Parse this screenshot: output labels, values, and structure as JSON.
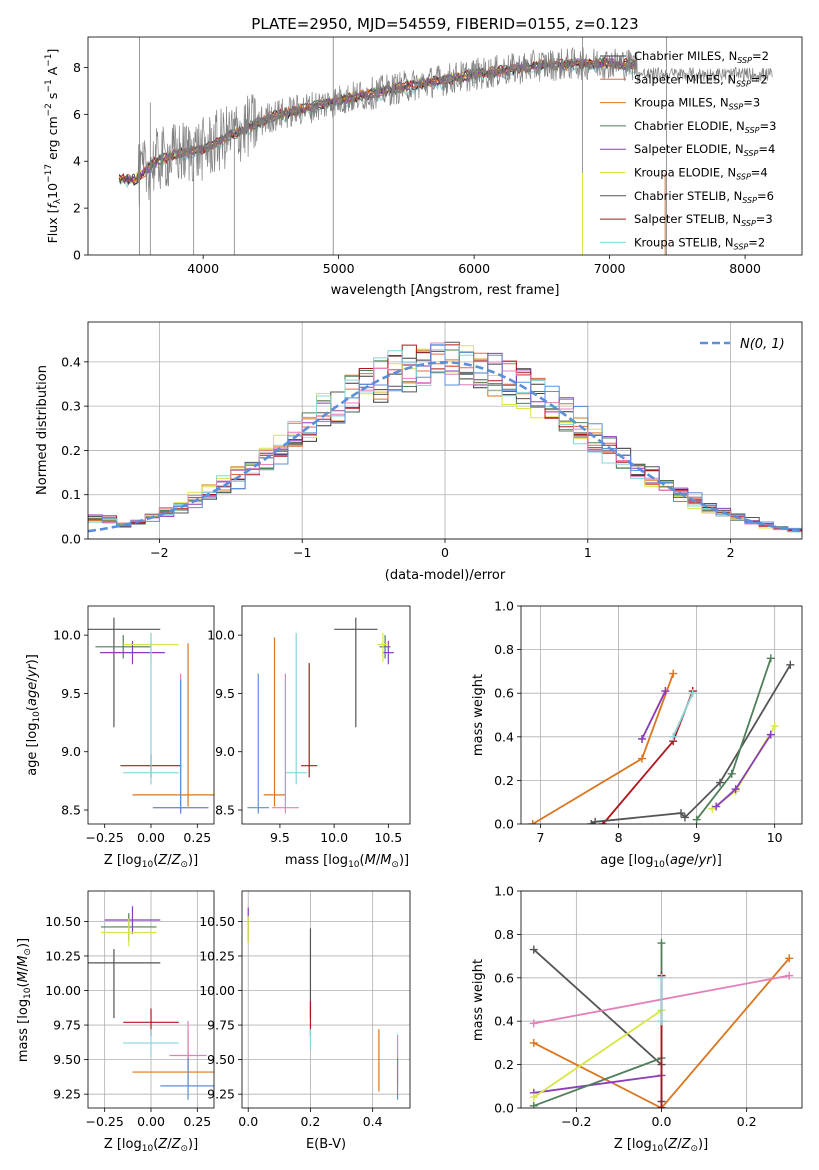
{
  "colors": {
    "chab_miles": "#3a3a3a",
    "salp_miles": "#e8684a",
    "krou_miles": "#d9761f",
    "chab_elodie": "#4e7f5a",
    "salp_elodie": "#8a3fb8",
    "krou_elodie": "#d9e64a",
    "chab_stelib": "#555555",
    "salp_stelib": "#b0151b",
    "krou_stelib": "#88d4d8",
    "observed": "#808080",
    "normal": "#5b8fd8",
    "pink": "#e47fb8",
    "blue": "#5b8fd8"
  },
  "chart_data": [
    {
      "type": "line",
      "title": "PLATE=2950, MJD=54559, FIBERID=0155, z=0.123",
      "xlabel": "wavelength [Angstrom, rest frame]",
      "ylabel": "Flux [fλ10⁻¹⁷ erg cm⁻² s⁻¹ A⁻¹]",
      "xlim": [
        3150,
        8420
      ],
      "ylim": [
        0,
        9.3
      ],
      "xticks": [
        "4000",
        "5000",
        "6000",
        "7000",
        "8000"
      ],
      "yticks": [
        "0",
        "2",
        "4",
        "6",
        "8"
      ],
      "legend_position": "top-right",
      "legend": [
        {
          "label": "Chabrier MILES, N_SSP=2",
          "color_key": "chab_miles"
        },
        {
          "label": "Salpeter MILES, N_SSP=2",
          "color_key": "salp_miles"
        },
        {
          "label": "Kroupa MILES, N_SSP=3",
          "color_key": "krou_miles"
        },
        {
          "label": "Chabrier ELODIE, N_SSP=3",
          "color_key": "chab_elodie"
        },
        {
          "label": "Salpeter ELODIE, N_SSP=4",
          "color_key": "salp_elodie"
        },
        {
          "label": "Kroupa ELODIE, N_SSP=4",
          "color_key": "krou_elodie"
        },
        {
          "label": "Chabrier STELIB, N_SSP=6",
          "color_key": "chab_stelib"
        },
        {
          "label": "Salpeter STELIB, N_SSP=3",
          "color_key": "salp_stelib"
        },
        {
          "label": "Kroupa STELIB, N_SSP=2",
          "color_key": "krou_stelib"
        }
      ],
      "continuum": [
        [
          3380,
          3.3
        ],
        [
          3500,
          3.2
        ],
        [
          3650,
          4.0
        ],
        [
          3800,
          4.3
        ],
        [
          4000,
          4.5
        ],
        [
          4200,
          5.1
        ],
        [
          4500,
          5.9
        ],
        [
          5000,
          6.6
        ],
        [
          5500,
          7.2
        ],
        [
          6000,
          7.7
        ],
        [
          6500,
          8.1
        ],
        [
          7000,
          8.2
        ],
        [
          7200,
          8.1
        ]
      ]
    },
    {
      "type": "bar",
      "xlabel": "(data-model)/error",
      "ylabel": "Normed distribution",
      "xlim": [
        -2.5,
        2.5
      ],
      "ylim": [
        0,
        0.49
      ],
      "xticks": [
        "−2",
        "−1",
        "0",
        "1",
        "2"
      ],
      "yticks": [
        "0.0",
        "0.1",
        "0.2",
        "0.3",
        "0.4"
      ],
      "legend_position": "top-right",
      "legend": [
        {
          "label": "N(0, 1)",
          "color_key": "normal"
        }
      ],
      "histogram_peak": 0.47
    },
    {
      "type": "scatter",
      "xlabel": "Z [log10(Z/Z⊙)]",
      "ylabel": "age [log10(age/yr)]",
      "xlim": [
        -0.34,
        0.34
      ],
      "ylim": [
        8.38,
        10.25
      ],
      "xticks": [
        "−0.25",
        "0.00",
        "0.25"
      ],
      "yticks": [
        "8.5",
        "9.0",
        "9.5",
        "10.0"
      ],
      "points": [
        {
          "x": -0.2,
          "y": 10.05,
          "xerr": [
            0.5
          ],
          "yerr": [
            0.84,
            0.1
          ],
          "color_key": "chab_stelib"
        },
        {
          "x": -0.15,
          "y": 9.9,
          "xerr": [
            0.3
          ],
          "yerr": [
            0.1,
            0.1
          ],
          "color_key": "chab_elodie"
        },
        {
          "x": -0.1,
          "y": 9.85,
          "xerr": [
            0.35
          ],
          "yerr": [
            0.1,
            0.1
          ],
          "color_key": "salp_elodie"
        },
        {
          "x": 0.0,
          "y": 9.92,
          "xerr": [
            0.3
          ],
          "yerr": [
            0.15,
            0.1
          ],
          "color_key": "krou_elodie"
        },
        {
          "x": 0.0,
          "y": 8.88,
          "xerr": [
            0.33
          ],
          "yerr": [
            0.1,
            0.1
          ],
          "color_key": "salp_stelib"
        },
        {
          "x": 0.0,
          "y": 8.82,
          "xerr": [
            0.3
          ],
          "yerr": [
            0.1,
            1.2
          ],
          "color_key": "krou_stelib"
        },
        {
          "x": 0.2,
          "y": 8.63,
          "xerr": [
            0.6
          ],
          "yerr": [
            0.1,
            1.3
          ],
          "color_key": "krou_miles"
        },
        {
          "x": 0.16,
          "y": 8.52,
          "xerr": [
            0.3
          ],
          "yerr": [
            0.05,
            1.15
          ],
          "color_key": "pink"
        },
        {
          "x": 0.16,
          "y": 8.52,
          "xerr": [
            0.3
          ],
          "yerr": [
            0.05,
            1.1
          ],
          "color_key": "blue"
        }
      ]
    },
    {
      "type": "scatter",
      "xlabel": "mass [log10(M/M⊙)]",
      "ylabel": "",
      "xlim": [
        9.15,
        10.7
      ],
      "ylim": [
        8.38,
        10.25
      ],
      "xticks": [
        "9.5",
        "10.0",
        "10.5"
      ],
      "yticks": [
        "8.5",
        "9.0",
        "9.5",
        "10.0"
      ],
      "points": [
        {
          "x": 10.2,
          "y": 10.05,
          "xerr": [
            0.4
          ],
          "yerr": [
            0.84,
            0.1
          ],
          "color_key": "chab_stelib"
        },
        {
          "x": 10.47,
          "y": 9.9,
          "xerr": [
            0.1
          ],
          "yerr": [
            0.1,
            0.1
          ],
          "color_key": "chab_elodie"
        },
        {
          "x": 10.5,
          "y": 9.85,
          "xerr": [
            0.1
          ],
          "yerr": [
            0.1,
            0.1
          ],
          "color_key": "salp_elodie"
        },
        {
          "x": 10.45,
          "y": 9.92,
          "xerr": [
            0.1
          ],
          "yerr": [
            0.15,
            0.1
          ],
          "color_key": "krou_elodie"
        },
        {
          "x": 9.77,
          "y": 8.88,
          "xerr": [
            0.15
          ],
          "yerr": [
            0.1,
            0.88
          ],
          "color_key": "salp_stelib"
        },
        {
          "x": 9.65,
          "y": 8.82,
          "xerr": [
            0.2
          ],
          "yerr": [
            0.1,
            1.2
          ],
          "color_key": "krou_stelib"
        },
        {
          "x": 9.45,
          "y": 8.63,
          "xerr": [
            0.2
          ],
          "yerr": [
            0.1,
            1.35
          ],
          "color_key": "krou_miles"
        },
        {
          "x": 9.55,
          "y": 8.52,
          "xerr": [
            0.25
          ],
          "yerr": [
            0.05,
            1.15
          ],
          "color_key": "pink"
        },
        {
          "x": 9.3,
          "y": 8.52,
          "xerr": [
            0.2
          ],
          "yerr": [
            0.05,
            1.15
          ],
          "color_key": "blue"
        }
      ]
    },
    {
      "type": "line",
      "xlabel": "age [log10(age/yr)]",
      "ylabel": "mass weight",
      "xlim": [
        6.75,
        10.35
      ],
      "ylim": [
        0.0,
        1.0
      ],
      "xticks": [
        "7",
        "8",
        "9",
        "10"
      ],
      "yticks": [
        "0.0",
        "0.2",
        "0.4",
        "0.6",
        "0.8",
        "1.0"
      ],
      "series": [
        {
          "color_key": "krou_miles",
          "x": [
            6.9,
            8.3,
            8.7
          ],
          "y": [
            0.0,
            0.3,
            0.69
          ]
        },
        {
          "color_key": "pink",
          "x": [
            8.3,
            8.6
          ],
          "y": [
            0.39,
            0.61
          ]
        },
        {
          "color_key": "salp_elodie",
          "x": [
            8.3,
            8.6
          ],
          "y": [
            0.39,
            0.61
          ]
        },
        {
          "color_key": "salp_stelib",
          "x": [
            7.8,
            8.7,
            8.95
          ],
          "y": [
            0.0,
            0.38,
            0.61
          ]
        },
        {
          "color_key": "krou_stelib",
          "x": [
            8.7,
            8.95
          ],
          "y": [
            0.4,
            0.6
          ]
        },
        {
          "color_key": "chab_stelib",
          "x": [
            7.65,
            7.7,
            8.8,
            8.85,
            9.3,
            10.2
          ],
          "y": [
            0.0,
            0.01,
            0.05,
            0.03,
            0.19,
            0.73
          ]
        },
        {
          "color_key": "chab_elodie",
          "x": [
            9.0,
            9.45,
            9.95
          ],
          "y": [
            0.02,
            0.23,
            0.76
          ]
        },
        {
          "color_key": "krou_elodie",
          "x": [
            9.2,
            9.5,
            10.0
          ],
          "y": [
            0.07,
            0.15,
            0.45
          ]
        },
        {
          "color_key": "salp_elodie",
          "x": [
            9.25,
            9.5,
            9.95
          ],
          "y": [
            0.08,
            0.16,
            0.41
          ]
        }
      ]
    },
    {
      "type": "scatter",
      "xlabel": "Z [log10(Z/Z⊙)]",
      "ylabel": "mass [log10(M/M⊙)]",
      "xlim": [
        -0.34,
        0.34
      ],
      "ylim": [
        9.15,
        10.72
      ],
      "xticks": [
        "−0.25",
        "0.00",
        "0.25"
      ],
      "yticks": [
        "9.25",
        "9.50",
        "9.75",
        "10.00",
        "10.25",
        "10.50"
      ],
      "points": [
        {
          "x": -0.2,
          "y": 10.2,
          "xerr": [
            0.5
          ],
          "yerr": [
            0.4,
            0.1
          ],
          "color_key": "chab_stelib"
        },
        {
          "x": -0.1,
          "y": 10.51,
          "xerr": [
            0.3
          ],
          "yerr": [
            0.1,
            0.1
          ],
          "color_key": "salp_elodie"
        },
        {
          "x": -0.12,
          "y": 10.46,
          "xerr": [
            0.3
          ],
          "yerr": [
            0.1,
            0.1
          ],
          "color_key": "chab_elodie"
        },
        {
          "x": -0.12,
          "y": 10.42,
          "xerr": [
            0.3
          ],
          "yerr": [
            0.1,
            0.1
          ],
          "color_key": "krou_elodie"
        },
        {
          "x": 0.0,
          "y": 9.77,
          "xerr": [
            0.3
          ],
          "yerr": [
            0.1,
            0.1
          ],
          "color_key": "salp_stelib"
        },
        {
          "x": 0.0,
          "y": 9.62,
          "xerr": [
            0.3
          ],
          "yerr": [
            0.1,
            0.1
          ],
          "color_key": "krou_stelib"
        },
        {
          "x": 0.2,
          "y": 9.41,
          "xerr": [
            0.6
          ],
          "yerr": [
            0.1,
            0.3
          ],
          "color_key": "krou_miles"
        },
        {
          "x": 0.2,
          "y": 9.53,
          "xerr": [
            0.2
          ],
          "yerr": [
            0.1,
            0.25
          ],
          "color_key": "pink"
        },
        {
          "x": 0.2,
          "y": 9.31,
          "xerr": [
            0.3
          ],
          "yerr": [
            0.1,
            0.2
          ],
          "color_key": "blue"
        }
      ]
    },
    {
      "type": "scatter",
      "xlabel": "E(B-V)",
      "ylabel": "",
      "xlim": [
        -0.02,
        0.52
      ],
      "ylim": [
        9.15,
        10.72
      ],
      "xticks": [
        "0.0",
        "0.2",
        "0.4"
      ],
      "yticks": [
        "9.25",
        "9.50",
        "9.75",
        "10.00",
        "10.25",
        "10.50"
      ],
      "points": [
        {
          "x": 0.0,
          "y": 10.5,
          "yerr": [
            0.15,
            0.1
          ],
          "color_key": "salp_elodie"
        },
        {
          "x": 0.0,
          "y": 10.44,
          "yerr": [
            0.1,
            0.1
          ],
          "color_key": "krou_elodie"
        },
        {
          "x": 0.2,
          "y": 10.2,
          "yerr": [
            0.4,
            0.25
          ],
          "color_key": "chab_stelib"
        },
        {
          "x": 0.2,
          "y": 9.77,
          "yerr": [
            0.1,
            0.15
          ],
          "color_key": "salp_stelib"
        },
        {
          "x": 0.2,
          "y": 9.62,
          "yerr": [
            0.05,
            0.1
          ],
          "color_key": "krou_stelib"
        },
        {
          "x": 0.42,
          "y": 9.42,
          "yerr": [
            0.15,
            0.3
          ],
          "color_key": "krou_miles"
        },
        {
          "x": 0.48,
          "y": 9.53,
          "yerr": [
            0.2,
            0.15
          ],
          "color_key": "pink"
        },
        {
          "x": 0.48,
          "y": 9.31,
          "yerr": [
            0.1,
            0.2
          ],
          "color_key": "blue"
        }
      ]
    },
    {
      "type": "line",
      "xlabel": "Z [log10(Z/Z⊙)]",
      "ylabel": "mass weight",
      "xlim": [
        -0.33,
        0.33
      ],
      "ylim": [
        0.0,
        1.0
      ],
      "xticks": [
        "−0.2",
        "0.0",
        "0.2"
      ],
      "yticks": [
        "0.0",
        "0.2",
        "0.4",
        "0.6",
        "0.8",
        "1.0"
      ],
      "series": [
        {
          "color_key": "chab_stelib",
          "x": [
            -0.3,
            0.0,
            0.0,
            0.0
          ],
          "y": [
            0.73,
            0.2,
            0.03,
            0.0
          ]
        },
        {
          "color_key": "krou_miles",
          "x": [
            -0.3,
            0.0,
            0.3
          ],
          "y": [
            0.3,
            0.0,
            0.69
          ]
        },
        {
          "color_key": "pink",
          "x": [
            -0.3,
            0.3
          ],
          "y": [
            0.39,
            0.61
          ]
        },
        {
          "color_key": "salp_elodie",
          "x": [
            -0.3,
            0.0,
            0.0
          ],
          "y": [
            0.07,
            0.15,
            0.0
          ]
        },
        {
          "color_key": "chab_elodie",
          "x": [
            -0.3,
            0.0,
            0.0
          ],
          "y": [
            0.01,
            0.23,
            0.76
          ]
        },
        {
          "color_key": "krou_elodie",
          "x": [
            -0.3,
            0.0
          ],
          "y": [
            0.05,
            0.45
          ]
        },
        {
          "color_key": "salp_stelib",
          "x": [
            0.0,
            0.0
          ],
          "y": [
            0.0,
            0.61
          ]
        },
        {
          "color_key": "krou_stelib",
          "x": [
            0.0,
            0.0
          ],
          "y": [
            0.4,
            0.6
          ]
        }
      ]
    }
  ]
}
